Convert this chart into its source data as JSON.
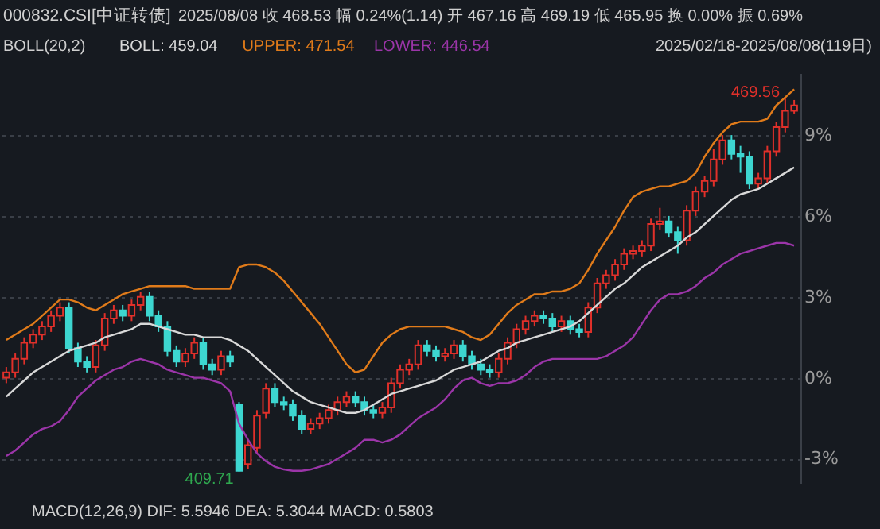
{
  "chart_data": {
    "type": "candlestick",
    "title": "000832.CSI[中证转债]",
    "categories": [
      null,
      null,
      null,
      null,
      null,
      null,
      null,
      null,
      null,
      null,
      null,
      null,
      null,
      null,
      null,
      null,
      null,
      null,
      null,
      null,
      null,
      null,
      null,
      null,
      null,
      null,
      null,
      null,
      null,
      null,
      null,
      null,
      null,
      null,
      null,
      null,
      null,
      null,
      null,
      null,
      null,
      null,
      null,
      null,
      null,
      null,
      null,
      null,
      null,
      null,
      null,
      null,
      null,
      null,
      null,
      null,
      null,
      null,
      null,
      null,
      null,
      null,
      null,
      null,
      null,
      null,
      null,
      null,
      null,
      null,
      null,
      null,
      null,
      null,
      null,
      null,
      null,
      null,
      null,
      null,
      null,
      null,
      null,
      null,
      null,
      null,
      null,
      null,
      null
    ],
    "ohlc": [
      [
        0.0,
        0.4,
        -0.2,
        0.2
      ],
      [
        0.2,
        0.9,
        0.0,
        0.7
      ],
      [
        0.7,
        1.5,
        0.5,
        1.3
      ],
      [
        1.3,
        1.8,
        1.1,
        1.6
      ],
      [
        1.6,
        2.1,
        1.4,
        1.9
      ],
      [
        1.9,
        2.5,
        1.7,
        2.3
      ],
      [
        2.3,
        2.8,
        2.1,
        2.6
      ],
      [
        2.6,
        2.8,
        0.9,
        1.1
      ],
      [
        1.1,
        1.3,
        0.4,
        0.6
      ],
      [
        0.6,
        0.8,
        0.2,
        0.4
      ],
      [
        0.4,
        1.4,
        0.2,
        1.2
      ],
      [
        1.2,
        2.4,
        1.0,
        2.2
      ],
      [
        2.2,
        2.7,
        2.0,
        2.5
      ],
      [
        2.5,
        2.7,
        2.1,
        2.3
      ],
      [
        2.3,
        2.9,
        2.1,
        2.7
      ],
      [
        2.7,
        3.2,
        2.5,
        3.0
      ],
      [
        3.0,
        3.2,
        2.1,
        2.3
      ],
      [
        2.3,
        2.5,
        1.7,
        1.9
      ],
      [
        1.9,
        2.1,
        0.8,
        1.0
      ],
      [
        1.0,
        1.2,
        0.4,
        0.6
      ],
      [
        0.6,
        1.1,
        0.4,
        0.9
      ],
      [
        0.9,
        1.5,
        0.7,
        1.3
      ],
      [
        1.3,
        1.5,
        0.3,
        0.5
      ],
      [
        0.5,
        0.7,
        0.1,
        0.3
      ],
      [
        0.3,
        1.0,
        0.1,
        0.8
      ],
      [
        0.8,
        1.0,
        0.4,
        0.6
      ],
      [
        -1.0,
        -0.9,
        -3.47,
        -3.45
      ],
      [
        -3.2,
        -2.3,
        -3.4,
        -2.5
      ],
      [
        -2.6,
        -1.2,
        -2.8,
        -1.4
      ],
      [
        -1.3,
        -0.2,
        -1.5,
        -0.4
      ],
      [
        -0.4,
        -0.2,
        -1.1,
        -0.9
      ],
      [
        -0.9,
        -0.7,
        -1.2,
        -1.0
      ],
      [
        -1.0,
        -0.8,
        -1.6,
        -1.4
      ],
      [
        -1.4,
        -1.2,
        -2.1,
        -1.9
      ],
      [
        -1.9,
        -1.5,
        -2.1,
        -1.7
      ],
      [
        -1.7,
        -1.3,
        -1.9,
        -1.5
      ],
      [
        -1.5,
        -1.0,
        -1.7,
        -1.2
      ],
      [
        -1.2,
        -0.7,
        -1.4,
        -0.9
      ],
      [
        -0.9,
        -0.5,
        -1.1,
        -0.7
      ],
      [
        -0.7,
        -0.5,
        -1.1,
        -0.9
      ],
      [
        -0.9,
        -0.7,
        -1.4,
        -1.2
      ],
      [
        -1.2,
        -1.0,
        -1.5,
        -1.3
      ],
      [
        -1.3,
        -0.9,
        -1.5,
        -1.1
      ],
      [
        -1.1,
        0.0,
        -1.3,
        -0.2
      ],
      [
        -0.2,
        0.5,
        -0.4,
        0.3
      ],
      [
        0.3,
        0.7,
        0.1,
        0.5
      ],
      [
        0.5,
        1.4,
        0.3,
        1.2
      ],
      [
        1.2,
        1.4,
        0.8,
        1.0
      ],
      [
        1.0,
        1.2,
        0.6,
        0.8
      ],
      [
        0.8,
        1.1,
        0.6,
        0.9
      ],
      [
        0.9,
        1.4,
        0.7,
        1.2
      ],
      [
        1.2,
        1.4,
        0.6,
        0.8
      ],
      [
        0.8,
        1.0,
        0.3,
        0.5
      ],
      [
        0.5,
        0.7,
        0.1,
        0.3
      ],
      [
        0.3,
        0.5,
        0.0,
        0.2
      ],
      [
        0.2,
        0.9,
        0.0,
        0.7
      ],
      [
        0.7,
        1.5,
        0.5,
        1.3
      ],
      [
        1.3,
        2.0,
        1.1,
        1.8
      ],
      [
        1.8,
        2.3,
        1.6,
        2.1
      ],
      [
        2.1,
        2.5,
        1.9,
        2.3
      ],
      [
        2.3,
        2.5,
        2.0,
        2.2
      ],
      [
        2.2,
        2.4,
        1.7,
        1.9
      ],
      [
        1.9,
        2.3,
        1.7,
        2.1
      ],
      [
        2.1,
        2.3,
        1.6,
        1.8
      ],
      [
        1.8,
        2.0,
        1.5,
        1.7
      ],
      [
        1.7,
        2.8,
        1.5,
        2.6
      ],
      [
        2.6,
        3.7,
        2.4,
        3.5
      ],
      [
        3.5,
        4.0,
        3.3,
        3.8
      ],
      [
        3.8,
        4.4,
        3.6,
        4.2
      ],
      [
        4.2,
        4.8,
        4.0,
        4.6
      ],
      [
        4.6,
        4.9,
        4.4,
        4.7
      ],
      [
        4.7,
        5.1,
        4.5,
        4.9
      ],
      [
        4.9,
        5.9,
        4.7,
        5.7
      ],
      [
        5.7,
        6.3,
        5.5,
        5.8
      ],
      [
        5.8,
        6.0,
        5.2,
        5.4
      ],
      [
        5.4,
        5.6,
        4.6,
        5.1
      ],
      [
        5.1,
        6.4,
        4.9,
        6.2
      ],
      [
        6.2,
        7.1,
        6.0,
        6.9
      ],
      [
        6.9,
        7.5,
        6.7,
        7.3
      ],
      [
        7.3,
        8.5,
        7.1,
        8.1
      ],
      [
        8.1,
        9.0,
        7.9,
        8.8
      ],
      [
        8.8,
        9.0,
        8.1,
        8.3
      ],
      [
        8.3,
        8.6,
        7.6,
        8.2
      ],
      [
        8.2,
        8.4,
        7.0,
        7.2
      ],
      [
        7.2,
        7.6,
        7.0,
        7.4
      ],
      [
        7.4,
        8.6,
        7.2,
        8.4
      ],
      [
        8.4,
        9.5,
        8.2,
        9.3
      ],
      [
        9.3,
        10.36,
        9.1,
        9.9
      ],
      [
        9.9,
        10.3,
        9.8,
        10.1
      ]
    ],
    "series": [
      {
        "name": "BOLL: 459.04",
        "type": "line",
        "color": "#d8d8d8",
        "values": [
          -0.7,
          -0.4,
          -0.1,
          0.2,
          0.4,
          0.6,
          0.8,
          1.0,
          1.1,
          1.2,
          1.3,
          1.5,
          1.6,
          1.7,
          1.8,
          2.0,
          2.0,
          1.9,
          1.8,
          1.7,
          1.6,
          1.6,
          1.5,
          1.5,
          1.5,
          1.4,
          1.2,
          1.0,
          0.7,
          0.4,
          0.1,
          -0.2,
          -0.5,
          -0.7,
          -0.9,
          -1.0,
          -1.1,
          -1.2,
          -1.3,
          -1.3,
          -1.2,
          -1.0,
          -0.8,
          -0.6,
          -0.5,
          -0.4,
          -0.3,
          -0.2,
          -0.1,
          0.1,
          0.3,
          0.4,
          0.5,
          0.6,
          0.8,
          1.0,
          1.1,
          1.3,
          1.4,
          1.5,
          1.6,
          1.7,
          1.8,
          1.9,
          2.1,
          2.4,
          2.7,
          3.0,
          3.3,
          3.5,
          3.8,
          4.1,
          4.3,
          4.5,
          4.7,
          4.9,
          5.2,
          5.4,
          5.7,
          6.0,
          6.3,
          6.6,
          6.8,
          6.9,
          7.0,
          7.2,
          7.4,
          7.6,
          7.8
        ]
      },
      {
        "name": "UPPER: 471.54",
        "type": "line",
        "color": "#e07b1a",
        "values": [
          1.4,
          1.6,
          1.8,
          2.0,
          2.3,
          2.6,
          2.9,
          2.9,
          2.8,
          2.6,
          2.5,
          2.7,
          2.9,
          3.1,
          3.2,
          3.3,
          3.4,
          3.4,
          3.4,
          3.4,
          3.4,
          3.3,
          3.3,
          3.3,
          3.3,
          3.3,
          4.1,
          4.2,
          4.2,
          4.1,
          3.9,
          3.6,
          3.2,
          2.8,
          2.4,
          2.0,
          1.5,
          1.0,
          0.5,
          0.2,
          0.3,
          0.8,
          1.3,
          1.6,
          1.8,
          1.9,
          1.9,
          1.9,
          1.9,
          1.9,
          1.8,
          1.7,
          1.5,
          1.4,
          1.6,
          2.0,
          2.4,
          2.7,
          2.9,
          3.1,
          3.1,
          3.2,
          3.2,
          3.3,
          3.5,
          4.0,
          4.6,
          5.1,
          5.6,
          6.2,
          6.7,
          6.9,
          7.0,
          7.1,
          7.1,
          7.2,
          7.3,
          7.6,
          8.2,
          8.7,
          9.1,
          9.4,
          9.5,
          9.5,
          9.5,
          9.6,
          10.1,
          10.4,
          10.7
        ]
      },
      {
        "name": "LOWER: 446.54",
        "type": "line",
        "color": "#9b35a8",
        "values": [
          -2.9,
          -2.7,
          -2.4,
          -2.1,
          -1.9,
          -1.8,
          -1.6,
          -1.2,
          -0.7,
          -0.4,
          -0.1,
          0.1,
          0.3,
          0.4,
          0.6,
          0.7,
          0.6,
          0.5,
          0.3,
          0.2,
          0.1,
          0.0,
          0.0,
          -0.1,
          -0.2,
          -0.5,
          -1.7,
          -2.3,
          -2.8,
          -3.1,
          -3.3,
          -3.4,
          -3.45,
          -3.45,
          -3.4,
          -3.3,
          -3.2,
          -3.0,
          -2.8,
          -2.6,
          -2.3,
          -2.3,
          -2.4,
          -2.3,
          -2.1,
          -1.8,
          -1.5,
          -1.3,
          -1.1,
          -0.8,
          -0.4,
          -0.1,
          0.0,
          -0.2,
          -0.3,
          -0.2,
          -0.2,
          -0.1,
          0.1,
          0.4,
          0.6,
          0.7,
          0.7,
          0.7,
          0.7,
          0.7,
          0.7,
          0.8,
          1.0,
          1.2,
          1.5,
          2.0,
          2.5,
          2.9,
          3.1,
          3.1,
          3.2,
          3.4,
          3.7,
          3.9,
          4.2,
          4.4,
          4.6,
          4.7,
          4.8,
          4.9,
          5.0,
          5.0,
          4.9
        ]
      }
    ],
    "ylim": [
      -3.9,
      11.3
    ],
    "yticks": [
      {
        "value": -3,
        "label": "-3%"
      },
      {
        "value": 0,
        "label": "0%"
      },
      {
        "value": 3,
        "label": "3%"
      },
      {
        "value": 6,
        "label": "6%"
      },
      {
        "value": 9,
        "label": "9%"
      }
    ],
    "grid": "y",
    "legend": "top left",
    "tick_labels": "y",
    "marker": "none",
    "line_style": "solid",
    "annotations": [
      "2025/08/08  收 468.53  幅 0.24%(1.14)  开 467.16  高 469.19  低 465.95  换 0.00%  振 0.69%",
      "BOLL(20,2)",
      "2025/02/18-2025/08/08(119日)",
      "MACD(12,26,9)  DIF: 5.5946  DEA: 5.3044  MACD: 0.5803",
      "409.71",
      "469.56"
    ]
  }
}
